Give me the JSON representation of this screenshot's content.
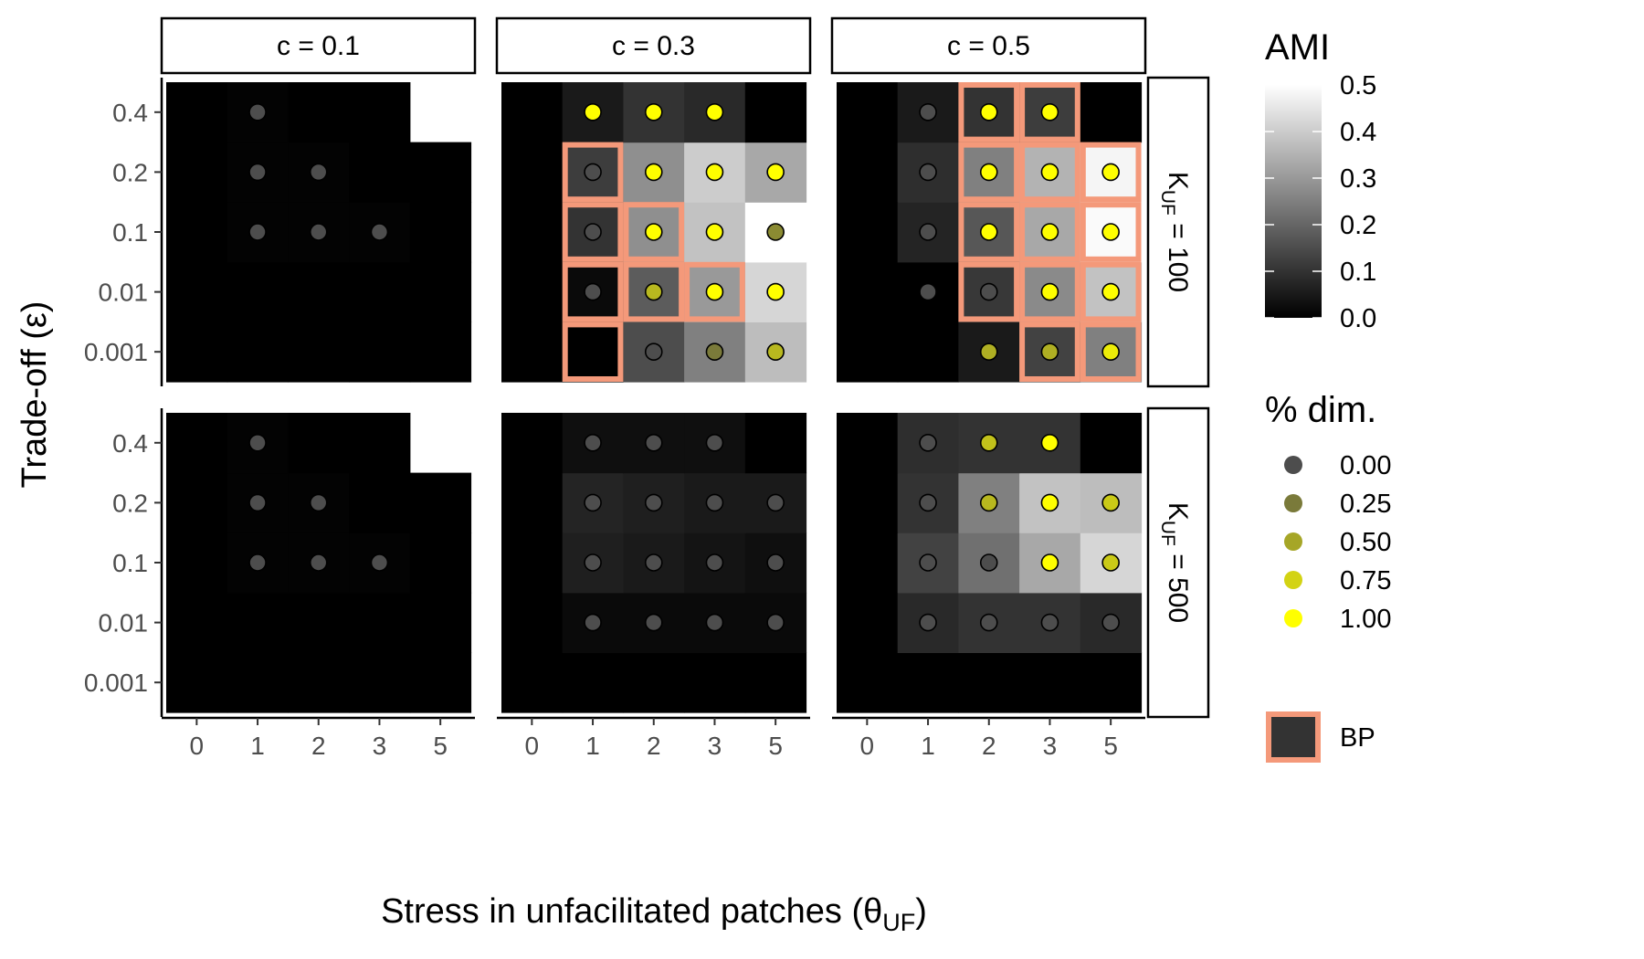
{
  "chart_data": {
    "type": "heatmap",
    "xlabel": "Stress in unfacilitated patches (θ",
    "xlabel_sub": "UF",
    "xlabel_tail": ")",
    "ylabel": "Trade-off (ε)",
    "x_ticks": [
      "0",
      "1",
      "2",
      "3",
      "5"
    ],
    "y_ticks": [
      "0.001",
      "0.01",
      "0.1",
      "0.2",
      "0.4"
    ],
    "col_facets": [
      "c = 0.1",
      "c = 0.3",
      "c = 0.5"
    ],
    "row_facets": [
      {
        "prefix": "K",
        "sub": "UF",
        "suffix": " = 100"
      },
      {
        "prefix": "K",
        "sub": "UF",
        "suffix": " = 500"
      }
    ],
    "legend_fill": {
      "title": "AMI",
      "range": [
        0,
        0.5
      ],
      "ticks": [
        "0.0",
        "0.1",
        "0.2",
        "0.3",
        "0.4",
        "0.5"
      ]
    },
    "legend_points": {
      "title": "% dim.",
      "values": [
        "0.00",
        "0.25",
        "0.50",
        "0.75",
        "1.00"
      ]
    },
    "legend_bp": {
      "label": "BP"
    },
    "colors": {
      "point_low": "#4d4d4d",
      "point_high": "#ffff00",
      "bp_border": "#f4997a",
      "fill_low": "#000000",
      "fill_high": "#ffffff"
    },
    "panels": [
      {
        "row": 0,
        "col": 0,
        "ami": [
          [
            0.0,
            0.0,
            0.0,
            0.0,
            0.0
          ],
          [
            0.0,
            0.0,
            0.0,
            0.0,
            0.0
          ],
          [
            0.0,
            0.005,
            0.005,
            0.005,
            0.0
          ],
          [
            0.0,
            0.005,
            0.005,
            0.0,
            0.0
          ],
          [
            0.0,
            0.005,
            0.0,
            0.0,
            null
          ]
        ],
        "dim": [
          [
            null,
            null,
            null,
            null,
            null
          ],
          [
            null,
            null,
            null,
            null,
            null
          ],
          [
            null,
            0,
            0,
            0,
            null
          ],
          [
            null,
            0,
            0,
            null,
            null
          ],
          [
            null,
            0,
            null,
            null,
            null
          ]
        ],
        "bp": []
      },
      {
        "row": 0,
        "col": 1,
        "ami": [
          [
            0.0,
            0.0,
            0.15,
            0.25,
            0.37
          ],
          [
            0.0,
            0.02,
            0.18,
            0.3,
            0.42
          ],
          [
            0.0,
            0.1,
            0.28,
            0.38,
            0.5
          ],
          [
            0.0,
            0.12,
            0.28,
            0.4,
            0.33
          ],
          [
            0.0,
            0.05,
            0.1,
            0.08,
            0.0
          ]
        ],
        "dim": [
          [
            null,
            null,
            0,
            0.25,
            0.6
          ],
          [
            null,
            0,
            0.6,
            1,
            1
          ],
          [
            null,
            0,
            1,
            1,
            0.35
          ],
          [
            null,
            0,
            1,
            1,
            1
          ],
          [
            null,
            1,
            1,
            1,
            null
          ]
        ],
        "bp": [
          [
            0,
            1
          ],
          [
            1,
            1
          ],
          [
            1,
            2
          ],
          [
            1,
            3
          ],
          [
            2,
            1
          ],
          [
            2,
            2
          ],
          [
            3,
            1
          ]
        ]
      },
      {
        "row": 0,
        "col": 2,
        "ami": [
          [
            0.0,
            0.0,
            0.05,
            0.13,
            0.25
          ],
          [
            0.0,
            0.0,
            0.11,
            0.27,
            0.38
          ],
          [
            0.0,
            0.07,
            0.17,
            0.33,
            0.49
          ],
          [
            0.0,
            0.09,
            0.25,
            0.35,
            0.48
          ],
          [
            0.0,
            0.05,
            0.1,
            0.12,
            0.0
          ]
        ],
        "dim": [
          [
            null,
            null,
            0.55,
            0.55,
            0.9
          ],
          [
            null,
            0,
            0,
            1,
            1
          ],
          [
            null,
            0,
            1,
            1,
            1
          ],
          [
            null,
            0,
            1,
            1,
            1
          ],
          [
            null,
            0,
            1,
            1,
            null
          ]
        ],
        "bp": [
          [
            0,
            3
          ],
          [
            0,
            4
          ],
          [
            1,
            2
          ],
          [
            1,
            3
          ],
          [
            1,
            4
          ],
          [
            2,
            2
          ],
          [
            2,
            3
          ],
          [
            2,
            4
          ],
          [
            3,
            2
          ],
          [
            3,
            3
          ],
          [
            3,
            4
          ],
          [
            4,
            2
          ],
          [
            4,
            3
          ]
        ]
      },
      {
        "row": 1,
        "col": 0,
        "ami": [
          [
            0.0,
            0.0,
            0.0,
            0.0,
            0.0
          ],
          [
            0.0,
            0.0,
            0.0,
            0.0,
            0.0
          ],
          [
            0.0,
            0.005,
            0.005,
            0.005,
            0.0
          ],
          [
            0.0,
            0.005,
            0.005,
            0.0,
            0.0
          ],
          [
            0.0,
            0.005,
            0.0,
            0.0,
            null
          ]
        ],
        "dim": [
          [
            null,
            null,
            null,
            null,
            null
          ],
          [
            null,
            null,
            null,
            null,
            null
          ],
          [
            null,
            0,
            0,
            0,
            null
          ],
          [
            null,
            0,
            0,
            null,
            null
          ],
          [
            null,
            0,
            null,
            null,
            null
          ]
        ],
        "bp": []
      },
      {
        "row": 1,
        "col": 1,
        "ami": [
          [
            0.0,
            0.0,
            0.0,
            0.0,
            0.0
          ],
          [
            0.0,
            0.02,
            0.02,
            0.02,
            0.02
          ],
          [
            0.0,
            0.06,
            0.05,
            0.04,
            0.03
          ],
          [
            0.0,
            0.07,
            0.06,
            0.05,
            0.05
          ],
          [
            0.0,
            0.03,
            0.03,
            0.03,
            0.0
          ]
        ],
        "dim": [
          [
            null,
            null,
            null,
            null,
            null
          ],
          [
            null,
            0,
            0,
            0,
            0
          ],
          [
            null,
            0,
            0,
            0,
            0
          ],
          [
            null,
            0,
            0,
            0,
            0
          ],
          [
            null,
            0,
            0,
            0,
            null
          ]
        ],
        "bp": []
      },
      {
        "row": 1,
        "col": 2,
        "ami": [
          [
            0.0,
            0.0,
            0.0,
            0.0,
            0.0
          ],
          [
            0.0,
            0.08,
            0.1,
            0.1,
            0.08
          ],
          [
            0.0,
            0.13,
            0.22,
            0.33,
            0.42
          ],
          [
            0.0,
            0.1,
            0.25,
            0.38,
            0.37
          ],
          [
            0.0,
            0.09,
            0.1,
            0.1,
            0.0
          ]
        ],
        "dim": [
          [
            null,
            null,
            null,
            null,
            null
          ],
          [
            null,
            0,
            0,
            0,
            0
          ],
          [
            null,
            0,
            0,
            1,
            0.7
          ],
          [
            null,
            0,
            0.6,
            1,
            0.7
          ],
          [
            null,
            0,
            0.65,
            1,
            null
          ]
        ],
        "bp": []
      }
    ]
  }
}
